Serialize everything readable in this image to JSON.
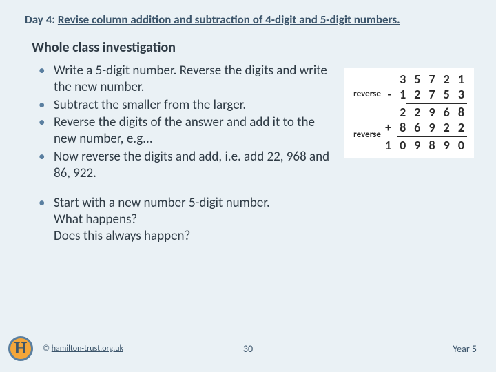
{
  "header": {
    "prefix": "Day 4:",
    "title": "Revise column addition and subtraction of 4-digit and 5-digit numbers."
  },
  "section_title": "Whole class investigation",
  "bullets_a": [
    "Write a 5-digit number. Reverse the digits and write the new number.",
    "Subtract the smaller from the larger.",
    "Reverse the digits of the answer and add it to the new number, e.g...",
    "Now reverse the digits and add, i.e. add 22, 968 and 86, 922."
  ],
  "bullets_b": [
    "Start with a new number 5-digit number.\nWhat happens?\nDoes this always happen?"
  ],
  "worked": {
    "label_reverse": "reverse",
    "row1": "3 5 7 2 1",
    "row2": "- 1 2 7 5 3",
    "row3": "2 2 9 6 8",
    "row4": "+ 8 6 9 2 2",
    "row5": "1 0 9 8 9 0"
  },
  "footer": {
    "logo": "H",
    "copyright_prefix": "© ",
    "copyright_link": "hamilton-trust.org.uk",
    "page": "30",
    "year": "Year 5"
  }
}
